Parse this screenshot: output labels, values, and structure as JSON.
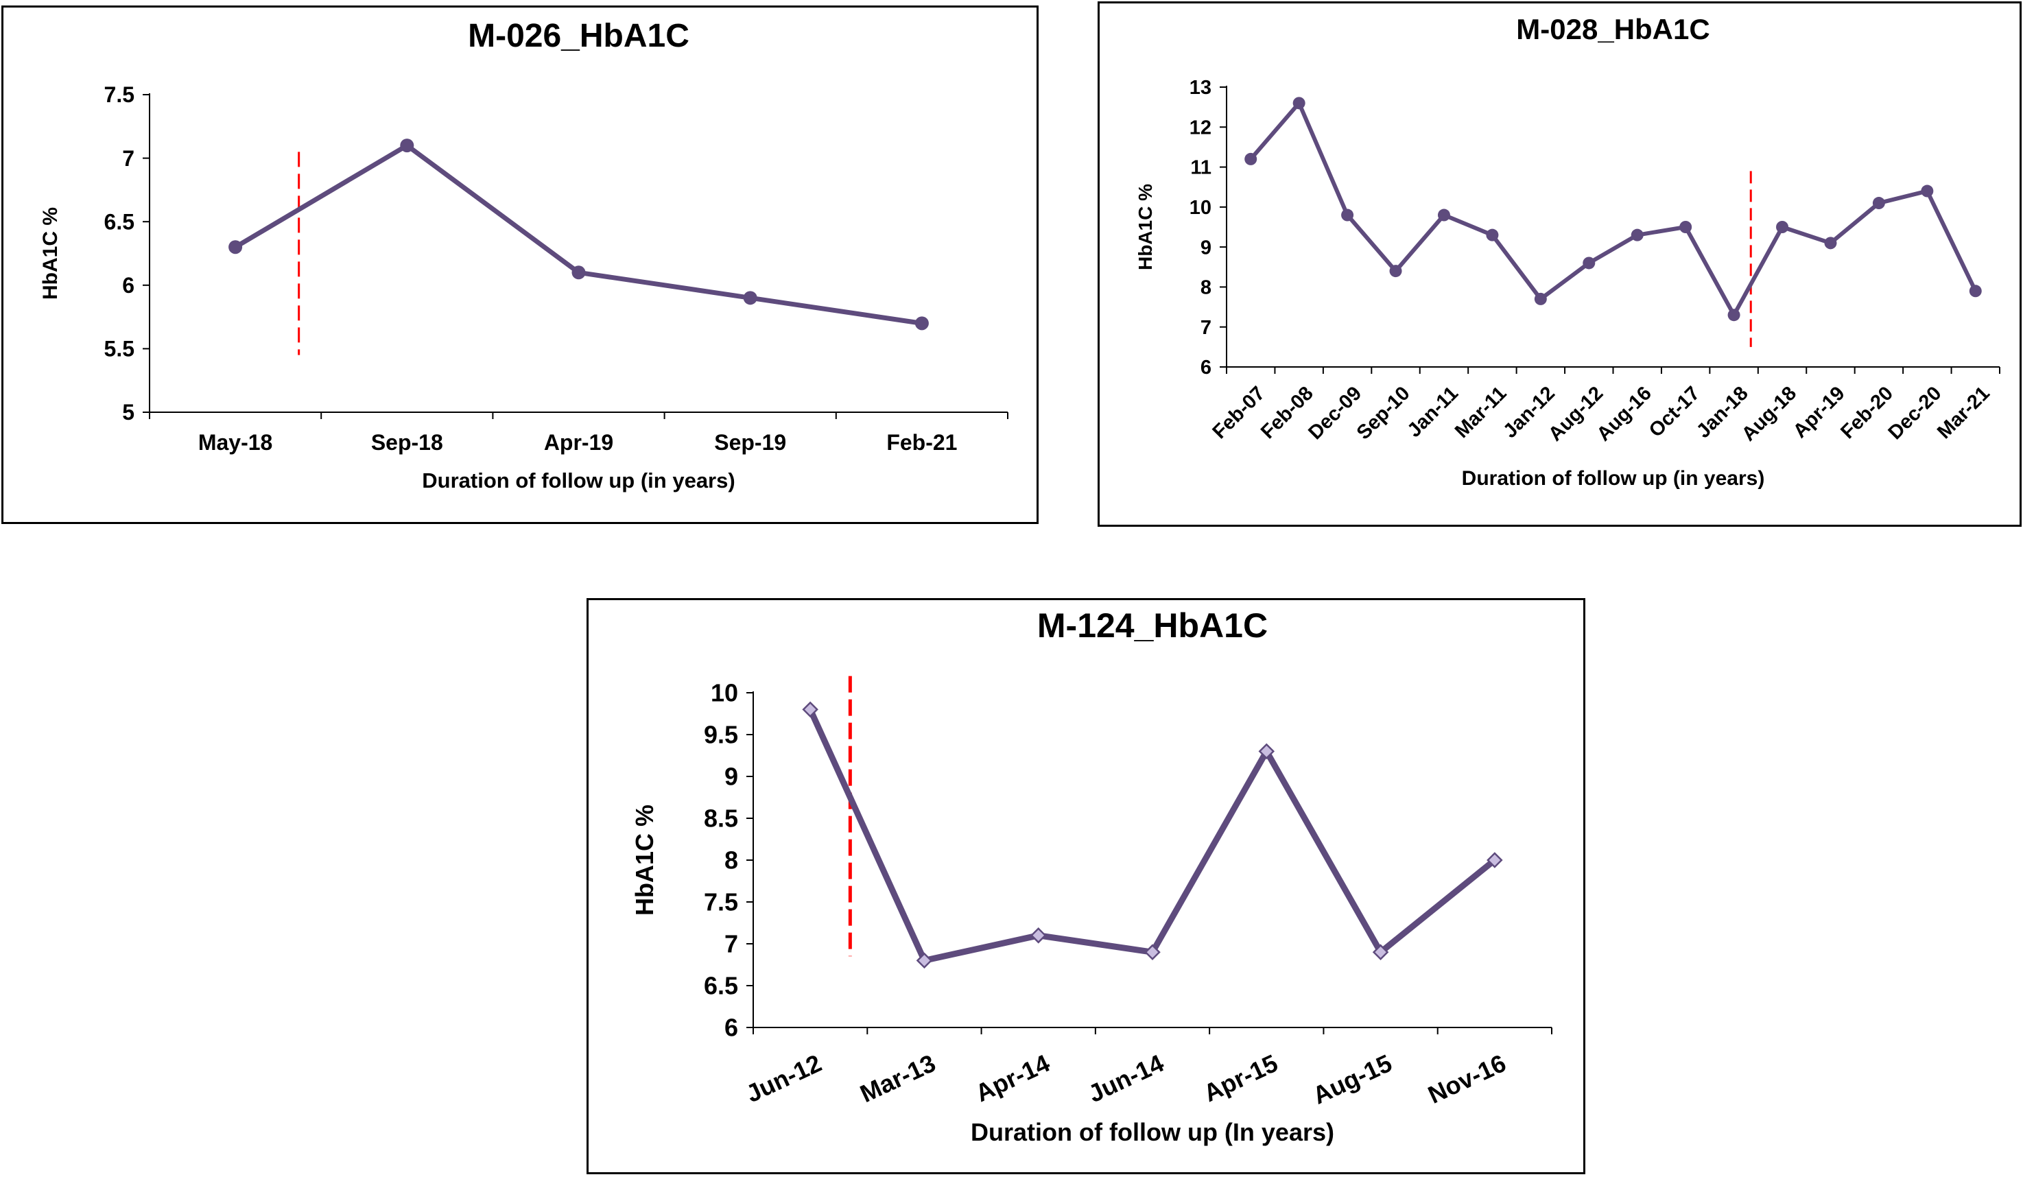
{
  "colors": {
    "line": "#5e4b7d",
    "marker_fill_c": "#c9bde0",
    "cutoff": "#ff0000"
  },
  "chart_data": [
    {
      "type": "line",
      "title": "M-026_HbA1C",
      "xlabel": "Duration of follow up (in years)",
      "ylabel": "HbA1C %",
      "categories": [
        "May-18",
        "Sep-18",
        "Apr-19",
        "Sep-19",
        "Feb-21"
      ],
      "values": [
        6.3,
        7.1,
        6.1,
        5.9,
        5.7
      ],
      "ylim": [
        5,
        7.5
      ],
      "yticks": [
        "5",
        "5.5",
        "6",
        "6.5",
        "7",
        "7.5"
      ],
      "marker": "circle",
      "cutoff_after_index": 0.37,
      "cutoff_y_range": [
        5.45,
        7.05
      ]
    },
    {
      "type": "line",
      "title": "M-028_HbA1C",
      "xlabel": "Duration of follow up (in years)",
      "ylabel": "HbA1C %",
      "categories": [
        "Feb-07",
        "Feb-08",
        "Dec-09",
        "Sep-10",
        "Jan-11",
        "Mar-11",
        "Jan-12",
        "Aug-12",
        "Aug-16",
        "Oct-17",
        "Jan-18",
        "Aug-18",
        "Apr-19",
        "Feb-20",
        "Dec-20",
        "Mar-21"
      ],
      "values": [
        11.2,
        12.6,
        9.8,
        8.4,
        9.8,
        9.3,
        7.7,
        8.6,
        9.3,
        9.5,
        7.3,
        9.5,
        9.1,
        10.1,
        10.4,
        7.9
      ],
      "ylim": [
        6,
        13
      ],
      "yticks": [
        "6",
        "7",
        "8",
        "9",
        "10",
        "11",
        "12",
        "13"
      ],
      "marker": "circle",
      "cutoff_after_index": 10.35,
      "cutoff_y_range": [
        6.5,
        10.9
      ]
    },
    {
      "type": "line",
      "title": "M-124_HbA1C",
      "xlabel": "Duration of follow up (In years)",
      "ylabel": "HbA1C %",
      "categories": [
        "Jun-12",
        "Mar-13",
        "Apr-14",
        "Jun-14",
        "Apr-15",
        "Aug-15",
        "Nov-16"
      ],
      "values": [
        9.8,
        6.8,
        7.1,
        6.9,
        9.3,
        6.9,
        8.0
      ],
      "ylim": [
        6,
        10
      ],
      "yticks": [
        "6",
        "6.5",
        "7",
        "7.5",
        "8",
        "8.5",
        "9",
        "9.5",
        "10"
      ],
      "marker": "diamond",
      "cutoff_after_index": 0.35,
      "cutoff_y_range": [
        6.85,
        10.2
      ]
    }
  ]
}
